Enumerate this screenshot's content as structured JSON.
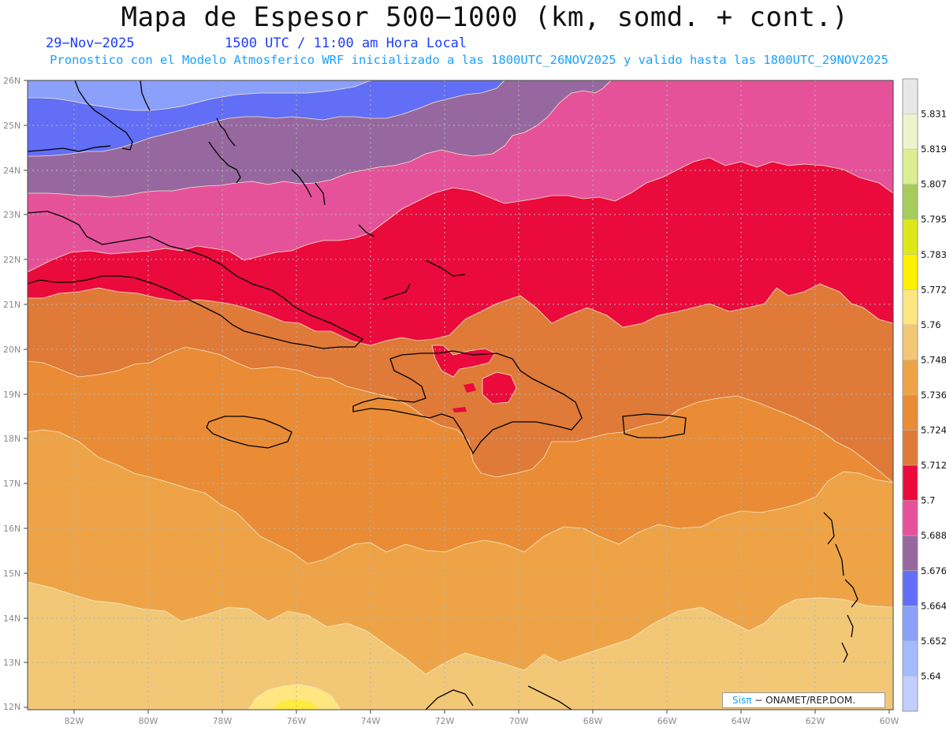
{
  "header": {
    "title": "Mapa de Espesor 500−1000 (km, somd. + cont.)",
    "date": "29−Nov−2025",
    "time": "1500 UTC / 11:00 am Hora Local",
    "model_info": "Pronostico con el Modelo Atmosferico WRF inicializado a las 1800UTC_26NOV2025 y valido hasta las  1800UTC_29NOV2025"
  },
  "axes": {
    "lat_labels": [
      "26N",
      "25N",
      "24N",
      "23N",
      "22N",
      "21N",
      "20N",
      "19N",
      "18N",
      "17N",
      "16N",
      "15N",
      "14N",
      "13N",
      "12N"
    ],
    "lon_labels": [
      "82W",
      "80W",
      "78W",
      "76W",
      "74W",
      "72W",
      "70W",
      "68W",
      "66W",
      "64W",
      "62W",
      "60W"
    ]
  },
  "colorbar": {
    "labels": [
      "5.831",
      "5.819",
      "5.807",
      "5.795",
      "5.783",
      "5.772",
      "5.76",
      "5.748",
      "5.736",
      "5.724",
      "5.712",
      "5.7",
      "5.688",
      "5.676",
      "5.664",
      "5.652",
      "5.64"
    ],
    "colors": [
      "#e8e8e8",
      "#eef4cc",
      "#dcee90",
      "#a6cc5c",
      "#dde81a",
      "#fff000",
      "#ffe680",
      "#f2c877",
      "#eea446",
      "#e98c35",
      "#df7a38",
      "#ea0a3c",
      "#e6529a",
      "#97689f",
      "#626ef5",
      "#8aa0fa",
      "#a4bcfd",
      "#c2cefb"
    ]
  },
  "credit": {
    "brand": "Sisπ",
    "text": " − ONAMET/REP.DOM."
  }
}
